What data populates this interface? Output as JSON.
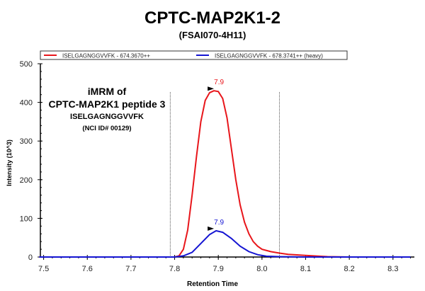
{
  "chart_data": {
    "type": "line",
    "title": "CPTC-MAP2K1-2",
    "subtitle": "(FSAI070-4H11)",
    "xlabel": "Retention Time",
    "ylabel": "Intensity (10^3)",
    "xlim": [
      7.49,
      8.34
    ],
    "ylim": [
      0,
      500
    ],
    "xticks": [
      "7.5",
      "7.6",
      "7.7",
      "7.8",
      "7.9",
      "8.0",
      "8.1",
      "8.2",
      "8.3"
    ],
    "yticks": [
      "0",
      "100",
      "200",
      "300",
      "400",
      "500"
    ],
    "grid": false,
    "legend_position": "top",
    "annotation": [
      "iMRM of",
      "CPTC-MAP2K1 peptide 3",
      "ISELGAGNGGVVFK",
      "(NCI ID# 00129)"
    ],
    "integration_bounds": [
      7.79,
      8.04
    ],
    "series": [
      {
        "name": "ISELGAGNGGVVFK - 674.3670++",
        "color": "#e8161b",
        "peak_label": "7.9",
        "peak": [
          7.895,
          430
        ],
        "x": [
          7.49,
          7.8,
          7.81,
          7.82,
          7.83,
          7.84,
          7.85,
          7.86,
          7.87,
          7.88,
          7.89,
          7.9,
          7.91,
          7.92,
          7.93,
          7.94,
          7.95,
          7.96,
          7.97,
          7.98,
          7.99,
          8.0,
          8.02,
          8.04,
          8.06,
          8.1,
          8.15,
          8.2,
          8.34
        ],
        "y": [
          0,
          0,
          3,
          20,
          70,
          160,
          260,
          350,
          405,
          425,
          430,
          428,
          410,
          360,
          280,
          200,
          135,
          90,
          60,
          40,
          28,
          20,
          14,
          10,
          7,
          4,
          1,
          0,
          0
        ]
      },
      {
        "name": "ISELGAGNGGVVFK - 678.3741++ (heavy)",
        "color": "#1414d2",
        "peak_label": "7.9",
        "peak": [
          7.895,
          68
        ],
        "x": [
          7.49,
          7.8,
          7.82,
          7.84,
          7.86,
          7.88,
          7.895,
          7.91,
          7.93,
          7.95,
          7.97,
          7.99,
          8.01,
          8.04,
          8.1,
          8.34
        ],
        "y": [
          0,
          0,
          3,
          12,
          35,
          58,
          68,
          64,
          48,
          28,
          14,
          6,
          2,
          1,
          0,
          0
        ]
      }
    ]
  }
}
